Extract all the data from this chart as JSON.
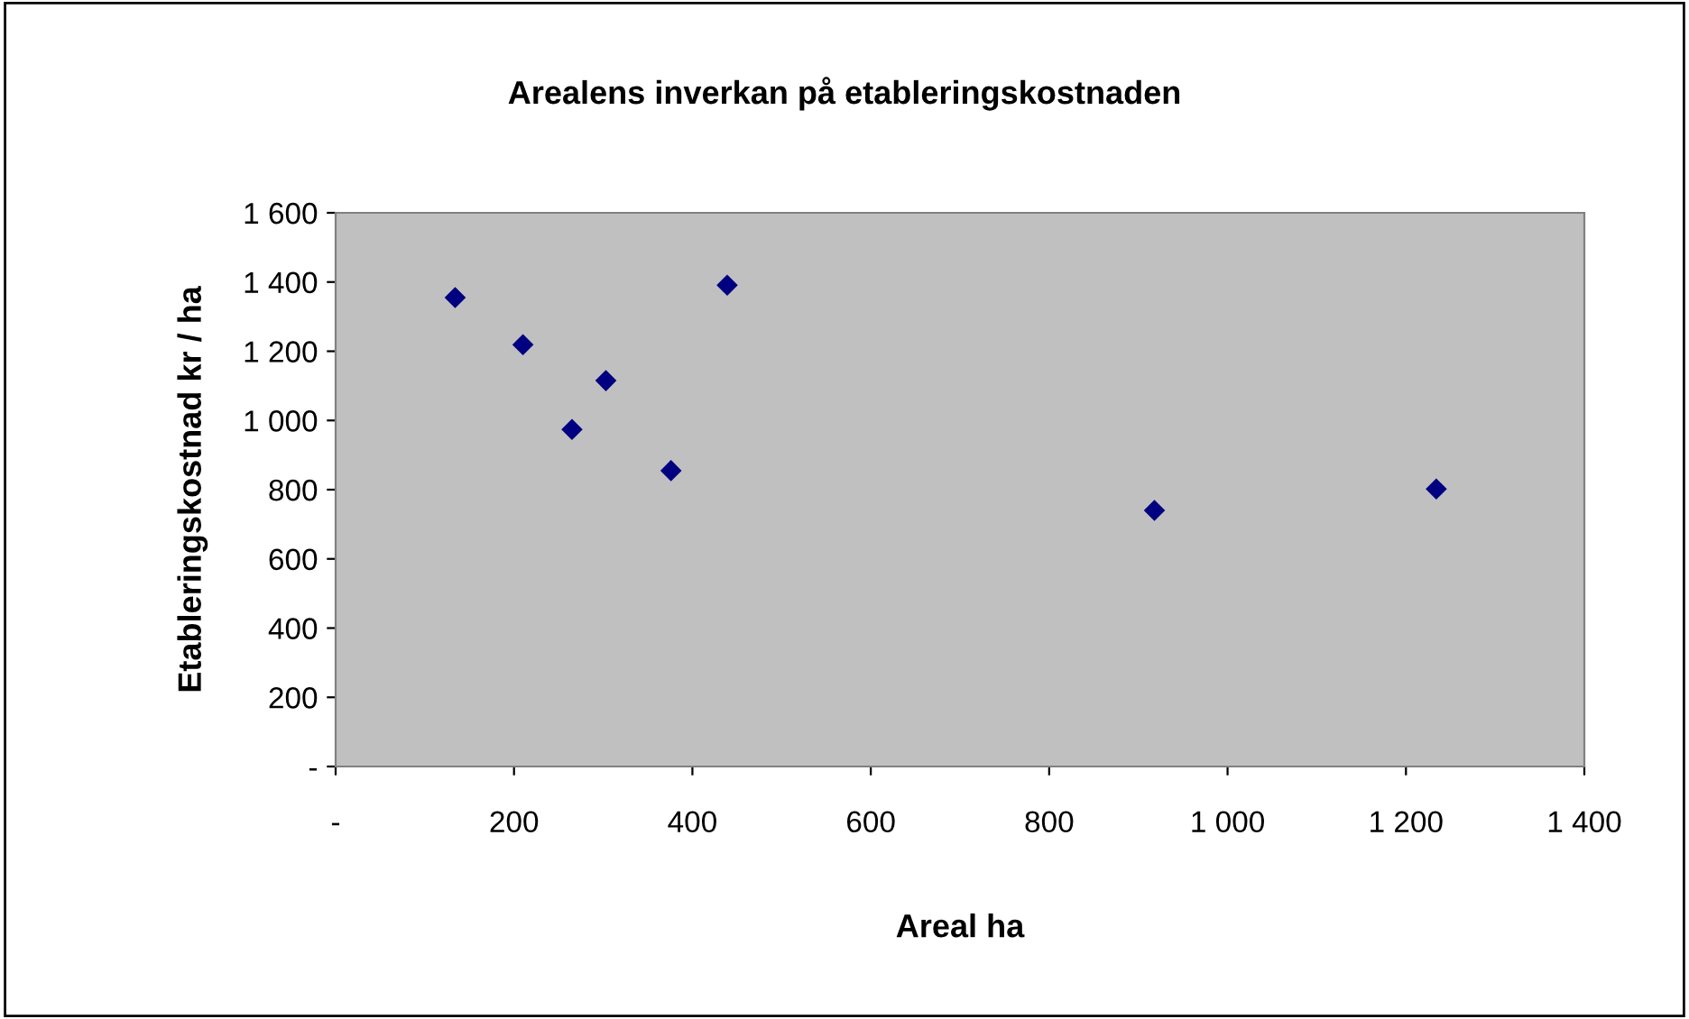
{
  "chart_data": {
    "type": "scatter",
    "title": "Arealens inverkan på etableringskostnaden",
    "xlabel": "Areal ha",
    "ylabel": "Etableringskostnad kr / ha",
    "x": [
      134,
      210,
      265,
      303,
      376,
      439,
      918,
      1234
    ],
    "values": [
      1355,
      1219,
      974,
      1115,
      855,
      1391,
      740,
      802
    ],
    "color": "#000080",
    "marker": "diamond",
    "grid": false,
    "legend": false,
    "xlim": [
      0,
      1400
    ],
    "xticks": [
      {
        "value": 0,
        "label": "-"
      },
      200,
      400,
      600,
      800,
      {
        "value": 1000,
        "label": "1 000"
      },
      {
        "value": 1200,
        "label": "1 200"
      },
      {
        "value": 1400,
        "label": "1 400"
      }
    ],
    "ylim": [
      0,
      1600
    ],
    "yticks": [
      {
        "value": 0,
        "label": "-"
      },
      200,
      400,
      600,
      800,
      {
        "value": 1000,
        "label": "1 000"
      },
      {
        "value": 1200,
        "label": "1 200"
      },
      {
        "value": 1400,
        "label": "1 400"
      },
      {
        "value": 1600,
        "label": "1 600"
      }
    ]
  }
}
